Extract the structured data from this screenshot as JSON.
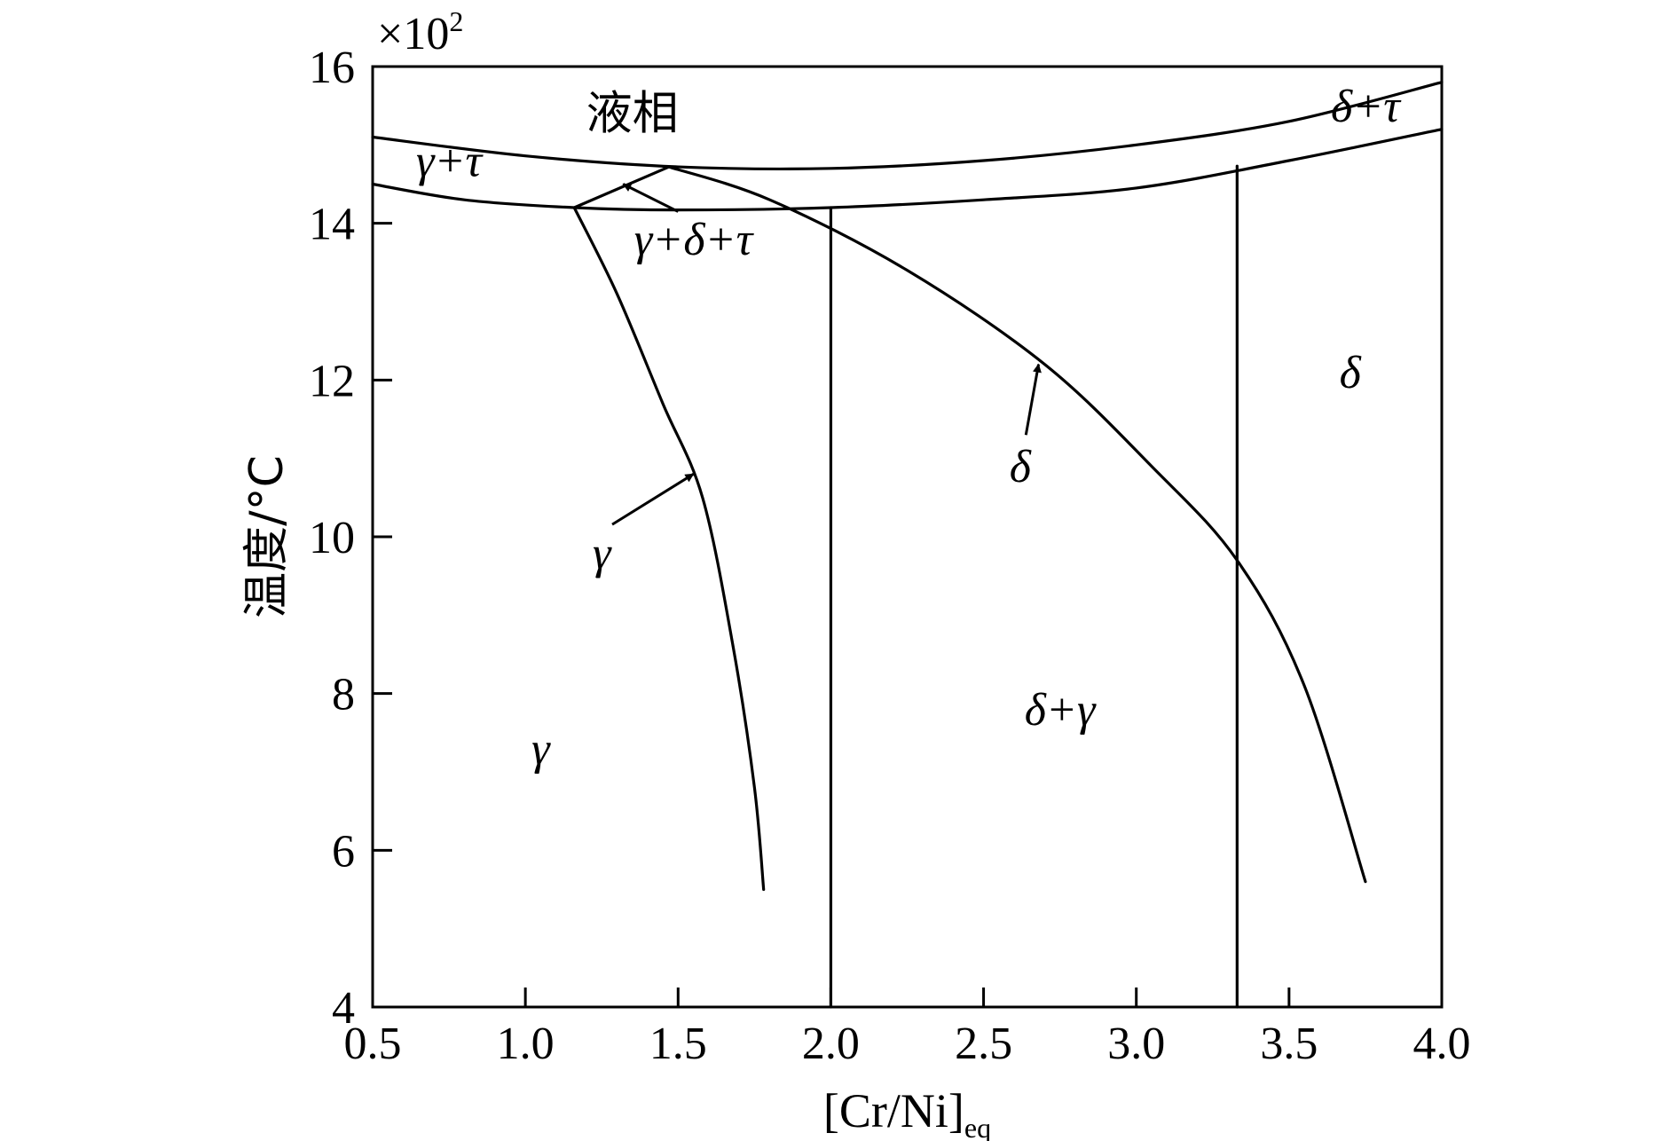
{
  "chart_data": {
    "type": "line",
    "title": "",
    "xlabel": "[Cr/Ni]",
    "xlabel_subscript": "eq",
    "ylabel": "温度/°C",
    "y_multiplier": "×10",
    "y_multiplier_exp": "2",
    "xlim": [
      0.5,
      4.0
    ],
    "ylim": [
      4,
      16
    ],
    "x_ticks": [
      "0.5",
      "1.0",
      "1.5",
      "2.0",
      "2.5",
      "3.0",
      "3.5",
      "4.0"
    ],
    "y_ticks": [
      "4",
      "6",
      "8",
      "10",
      "12",
      "14",
      "16"
    ],
    "grid": false,
    "series": [
      {
        "points": [
          [
            0.5,
            15.1
          ],
          [
            1.0,
            14.86
          ],
          [
            1.5,
            14.72
          ],
          [
            2.0,
            14.7
          ],
          [
            2.5,
            14.8
          ],
          [
            3.0,
            15.0
          ],
          [
            3.5,
            15.3
          ],
          [
            4.0,
            15.8
          ]
        ]
      },
      {
        "points": [
          [
            0.5,
            14.5
          ],
          [
            0.8,
            14.3
          ],
          [
            1.16,
            14.2
          ],
          [
            1.5,
            14.17
          ],
          [
            2.0,
            14.2
          ],
          [
            2.5,
            14.3
          ],
          [
            3.0,
            14.45
          ],
          [
            3.5,
            14.8
          ],
          [
            4.0,
            15.2
          ]
        ]
      },
      {
        "points": [
          [
            1.16,
            14.2
          ],
          [
            1.3,
            13.1
          ],
          [
            1.45,
            11.7
          ],
          [
            1.58,
            10.5
          ],
          [
            1.68,
            8.6
          ],
          [
            1.75,
            6.8
          ],
          [
            1.78,
            5.5
          ]
        ]
      },
      {
        "points": [
          [
            1.47,
            14.72
          ],
          [
            1.8,
            14.3
          ],
          [
            2.25,
            13.4
          ],
          [
            2.7,
            12.2
          ],
          [
            3.05,
            10.9
          ],
          [
            3.33,
            9.7
          ],
          [
            3.55,
            8.1
          ],
          [
            3.75,
            5.6
          ]
        ]
      },
      {
        "points": [
          [
            1.16,
            14.2
          ],
          [
            1.47,
            14.72
          ]
        ]
      },
      {
        "points": [
          [
            2.0,
            4.0
          ],
          [
            2.0,
            14.2
          ]
        ]
      },
      {
        "points": [
          [
            3.33,
            4.0
          ],
          [
            3.33,
            14.73
          ]
        ]
      }
    ],
    "annotations": [
      {
        "text": "液相",
        "x": 1.35,
        "y": 15.2
      },
      {
        "text": "γ+τ",
        "x": 0.75,
        "y": 14.6
      },
      {
        "text": "δ+τ",
        "x": 3.75,
        "y": 15.3
      },
      {
        "text": "γ+δ+τ",
        "x": 1.55,
        "y": 13.6,
        "arrow_to": [
          1.32,
          14.5
        ]
      },
      {
        "text": "γ",
        "x": 1.25,
        "y": 9.6,
        "arrow_to": [
          1.55,
          10.8
        ]
      },
      {
        "text": "δ",
        "x": 2.62,
        "y": 10.7,
        "arrow_to": [
          2.68,
          12.2
        ]
      },
      {
        "text": "δ",
        "x": 3.7,
        "y": 11.9
      },
      {
        "text": "γ",
        "x": 1.05,
        "y": 7.1
      },
      {
        "text": "δ+γ",
        "x": 2.75,
        "y": 7.6
      }
    ]
  }
}
